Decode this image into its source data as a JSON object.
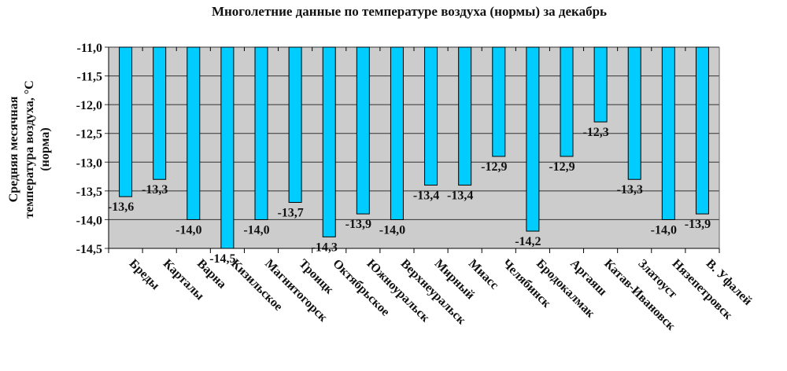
{
  "chart_data": {
    "type": "bar",
    "title": "Многолетние данные по температуре воздуха (нормы) за декабрь",
    "ylabel_lines": [
      "Средняя месячная",
      "температура воздуха, °С",
      "(норма)"
    ],
    "xlabel": "",
    "ylim": [
      -11.0,
      -14.5
    ],
    "yticks": [
      "-11,0",
      "-11,5",
      "-12,0",
      "-12,5",
      "-13,0",
      "-13,5",
      "-14,0",
      "-14,5"
    ],
    "ytick_values": [
      -11.0,
      -11.5,
      -12.0,
      -12.5,
      -13.0,
      -13.5,
      -14.0,
      -14.5
    ],
    "grid": true,
    "bars_hang_from_top": true,
    "categories": [
      "Бреды",
      "Карталы",
      "Варна",
      "Кизильское",
      "Магнитогорск",
      "Троицк",
      "Октябрьское",
      "Южноуральск",
      "Верхнеуральск",
      "Мирный",
      "Миасс",
      "Челябинск",
      "Бродокалмак",
      "Аргаяш",
      "Катав-Ивановск",
      "Златоуст",
      "Нязепетровск",
      "В. Уфалей"
    ],
    "values": [
      -13.6,
      -13.3,
      -14.0,
      -14.5,
      -14.0,
      -13.7,
      -14.3,
      -13.9,
      -14.0,
      -13.4,
      -13.4,
      -12.9,
      -14.2,
      -12.9,
      -12.3,
      -13.3,
      -14.0,
      -13.9
    ],
    "data_labels": [
      "-13,6",
      "-13,3",
      "-14,0",
      "-14,5",
      "-14,0",
      "-13,7",
      "-14,3",
      "-13,9",
      "-14,0",
      "-13,4",
      "-13,4",
      "-12,9",
      "-14,2",
      "-12,9",
      "-12,3",
      "-13,3",
      "-14,0",
      "-13,9"
    ],
    "colors": {
      "bar": "#00ccff",
      "plot_background": "#cccccc",
      "grid": "#333333"
    }
  }
}
